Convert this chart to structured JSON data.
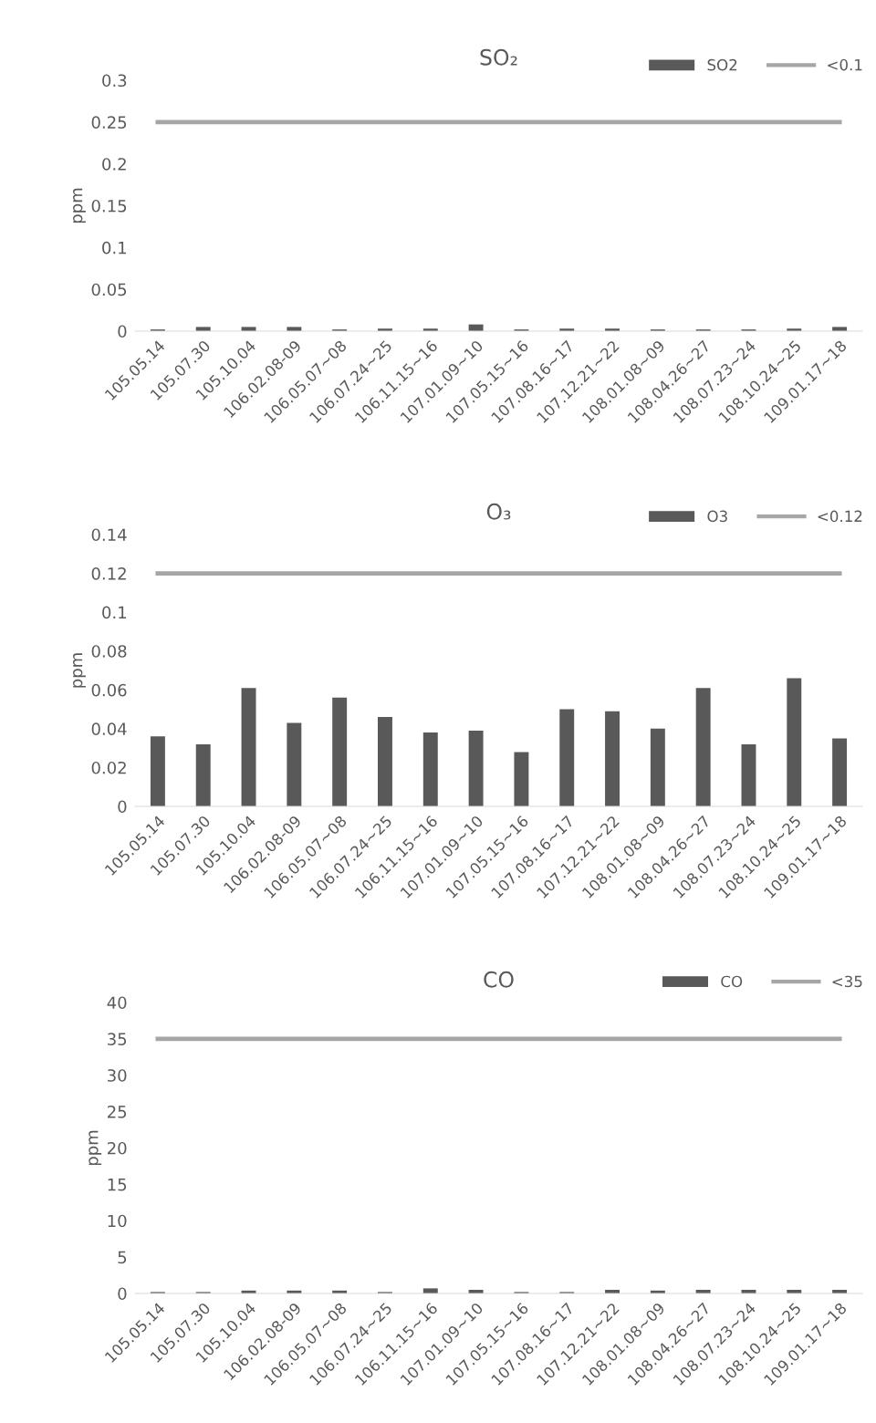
{
  "chart_data": [
    {
      "type": "bar",
      "title": "SO₂",
      "ylabel": "ppm",
      "categories": [
        "105.05.14",
        "105.07.30",
        "105.10.04",
        "106.02.08-09",
        "106.05.07~08",
        "106.07.24~25",
        "106.11.15~16",
        "107.01.09~10",
        "107.05.15~16",
        "107.08.16~17",
        "107.12.21~22",
        "108.01.08~09",
        "108.04.26~27",
        "108.07.23~24",
        "108.10.24~25",
        "109.01.17~18"
      ],
      "series": [
        {
          "name": "SO2",
          "color": "#595959",
          "values": [
            0.002,
            0.005,
            0.005,
            0.005,
            0.002,
            0.003,
            0.003,
            0.008,
            0.002,
            0.003,
            0.003,
            0.002,
            0.002,
            0.002,
            0.003,
            0.005
          ]
        },
        {
          "name": "<0.1",
          "type": "line",
          "color": "#a6a6a6",
          "values": [
            0.25,
            0.25,
            0.25,
            0.25,
            0.25,
            0.25,
            0.25,
            0.25,
            0.25,
            0.25,
            0.25,
            0.25,
            0.25,
            0.25,
            0.25,
            0.25
          ]
        }
      ],
      "ylim": [
        0,
        0.3
      ],
      "yticks": [
        0,
        0.05,
        0.1,
        0.15,
        0.2,
        0.25,
        0.3
      ],
      "legend": "top right",
      "grid": false
    },
    {
      "type": "bar",
      "title": "O₃",
      "ylabel": "ppm",
      "categories": [
        "105.05.14",
        "105.07.30",
        "105.10.04",
        "106.02.08-09",
        "106.05.07~08",
        "106.07.24~25",
        "106.11.15~16",
        "107.01.09~10",
        "107.05.15~16",
        "107.08.16~17",
        "107.12.21~22",
        "108.01.08~09",
        "108.04.26~27",
        "108.07.23~24",
        "108.10.24~25",
        "109.01.17~18"
      ],
      "series": [
        {
          "name": "O3",
          "color": "#595959",
          "values": [
            0.036,
            0.032,
            0.061,
            0.043,
            0.056,
            0.046,
            0.038,
            0.039,
            0.028,
            0.05,
            0.049,
            0.04,
            0.061,
            0.032,
            0.066,
            0.035
          ]
        },
        {
          "name": "<0.12",
          "type": "line",
          "color": "#a6a6a6",
          "values": [
            0.12,
            0.12,
            0.12,
            0.12,
            0.12,
            0.12,
            0.12,
            0.12,
            0.12,
            0.12,
            0.12,
            0.12,
            0.12,
            0.12,
            0.12,
            0.12
          ]
        }
      ],
      "ylim": [
        0,
        0.14
      ],
      "yticks": [
        0,
        0.02,
        0.04,
        0.06,
        0.08,
        0.1,
        0.12,
        0.14
      ],
      "legend": "top right",
      "grid": false
    },
    {
      "type": "bar",
      "title": "CO",
      "ylabel": "ppm",
      "categories": [
        "105.05.14",
        "105.07.30",
        "105.10.04",
        "106.02.08-09",
        "106.05.07~08",
        "106.07.24~25",
        "106.11.15~16",
        "107.01.09~10",
        "107.05.15~16",
        "107.08.16~17",
        "107.12.21~22",
        "108.01.08~09",
        "108.04.26~27",
        "108.07.23~24",
        "108.10.24~25",
        "109.01.17~18"
      ],
      "series": [
        {
          "name": "CO",
          "color": "#595959",
          "values": [
            0.2,
            0.2,
            0.4,
            0.4,
            0.4,
            0.2,
            0.7,
            0.5,
            0.2,
            0.2,
            0.5,
            0.4,
            0.5,
            0.5,
            0.5,
            0.5
          ]
        },
        {
          "name": "<35",
          "type": "line",
          "color": "#a6a6a6",
          "values": [
            35,
            35,
            35,
            35,
            35,
            35,
            35,
            35,
            35,
            35,
            35,
            35,
            35,
            35,
            35,
            35
          ]
        }
      ],
      "ylim": [
        0,
        40
      ],
      "yticks": [
        0,
        5,
        10,
        15,
        20,
        25,
        30,
        35,
        40
      ],
      "legend": "top right",
      "grid": false
    }
  ]
}
